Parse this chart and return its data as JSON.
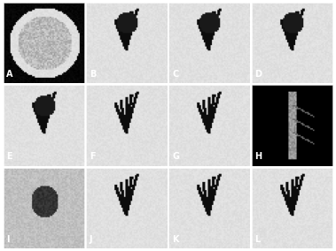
{
  "figure_width": 3.79,
  "figure_height": 2.84,
  "dpi": 100,
  "nrows": 3,
  "ncols": 4,
  "labels": [
    "A",
    "B",
    "C",
    "D",
    "E",
    "F",
    "G",
    "H",
    "I",
    "J",
    "K",
    "L"
  ],
  "label_color": "white",
  "label_fontsize": 7,
  "label_fontweight": "bold",
  "border_color": "white",
  "border_linewidth": 0.5,
  "bg_colors": [
    "#888888",
    "#c0c0c0",
    "#c0c0c0",
    "#c0c0c0",
    "#c0c0c0",
    "#d0d0d0",
    "#d0d0d0",
    "#000000",
    "#b0b0b0",
    "#d8d8d8",
    "#d8d8d8",
    "#d8d8d8"
  ],
  "hspace": 0.02,
  "wspace": 0.02,
  "panel_bg": "#ffffff"
}
